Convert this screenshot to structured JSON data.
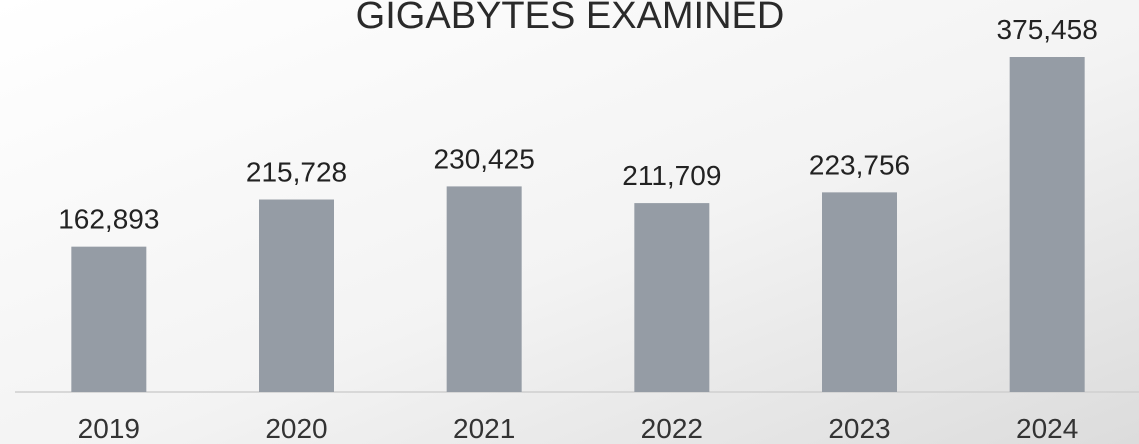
{
  "chart_data": {
    "type": "bar",
    "title": "GIGABYTES EXAMINED",
    "categories": [
      "2019",
      "2020",
      "2021",
      "2022",
      "2023",
      "2024"
    ],
    "values": [
      162893,
      215728,
      230425,
      211709,
      223756,
      375458
    ],
    "value_labels": [
      "162,893",
      "215,728",
      "230,425",
      "211,709",
      "223,756",
      "375,458"
    ],
    "color": "#959ca5"
  }
}
